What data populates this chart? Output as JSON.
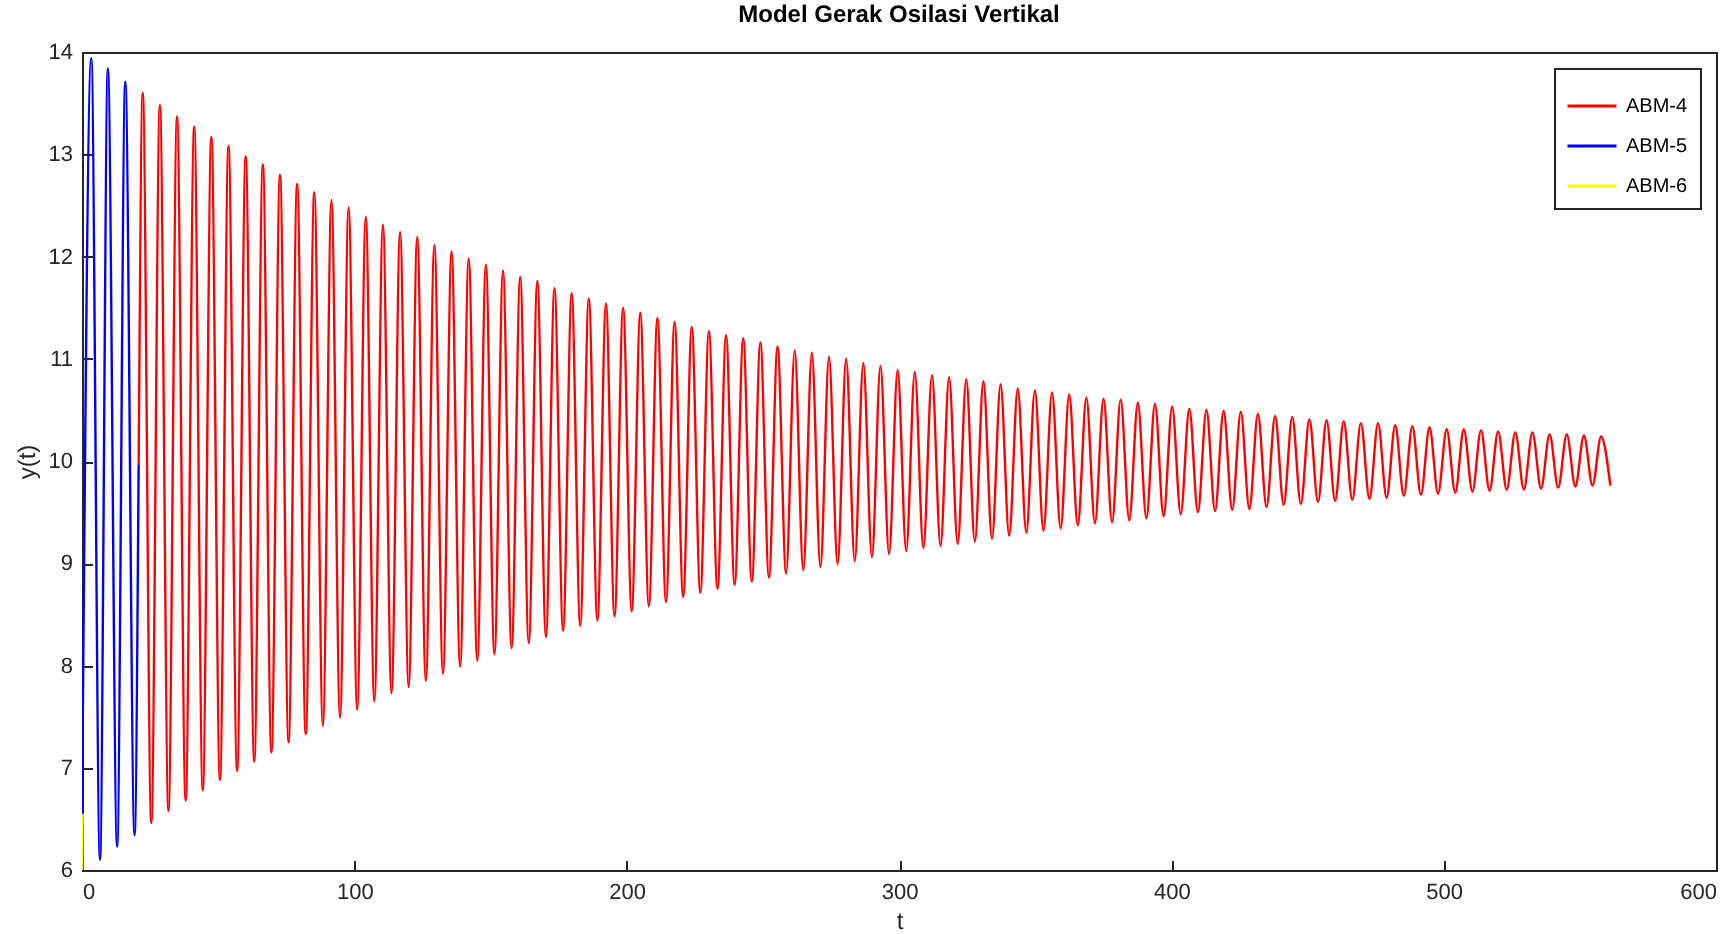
{
  "chart_data": {
    "type": "line",
    "title": "Model Gerak Osilasi Vertikal",
    "xlabel": "t",
    "ylabel": "y(t)",
    "xlim": [
      0,
      600
    ],
    "ylim": [
      6,
      14
    ],
    "xticks": [
      0,
      100,
      200,
      300,
      400,
      500,
      600
    ],
    "yticks": [
      6,
      7,
      8,
      9,
      10,
      11,
      12,
      13,
      14
    ],
    "legend": "top right",
    "series": [
      {
        "name": "ABM-4",
        "color": "#ff0000",
        "x": [
          20.8,
          22.3,
          25.45,
          28.6,
          31.75,
          34.9,
          38.05,
          41.2,
          44.35,
          47.5,
          50.65,
          53.8,
          56.95,
          60.1,
          63.25,
          66.4,
          69.55,
          72.7,
          75.85,
          79,
          82.15,
          85.3,
          88.45,
          91.6,
          94.75,
          97.9,
          101.05,
          104.2,
          107.35,
          110.5,
          113.65,
          116.8,
          119.95,
          123.1,
          126.25,
          129.4,
          132.55,
          135.7,
          138.85,
          142,
          145.15,
          148.3,
          151.45,
          154.6,
          157.75,
          160.9,
          164.05,
          167.2,
          170.35,
          173.5,
          176.65,
          179.8,
          182.95,
          186.1,
          189.25,
          192.4,
          195.55,
          198.7,
          201.85,
          205,
          208.15,
          211.3,
          214.45,
          217.6,
          220.75,
          223.9,
          227.05,
          230.2,
          233.35,
          236.5,
          239.65,
          242.8,
          245.95,
          249.1,
          252.25,
          255.4,
          258.55,
          261.7,
          264.85,
          268,
          271.15,
          274.3,
          277.45,
          280.6,
          283.75,
          286.9,
          290.05,
          293.2,
          296.35,
          299.5,
          302.65,
          305.8,
          308.95,
          312.1,
          315.25,
          318.4,
          321.55,
          324.7,
          327.85,
          331,
          334.15,
          337.3,
          340.45,
          343.6,
          346.75,
          349.9,
          353.05,
          356.2,
          359.35,
          362.5,
          365.65,
          368.8,
          371.95,
          375.1,
          378.25,
          381.4,
          384.55,
          387.7,
          390.85,
          394,
          397.15,
          400.3,
          403.45,
          406.6,
          409.75,
          412.9,
          416.05,
          419.2,
          422.35,
          425.5,
          428.65,
          431.8,
          434.95,
          438.1,
          441.25,
          444.4,
          447.55,
          450.7,
          453.85,
          457,
          460.15,
          463.3,
          466.45,
          469.6,
          472.75,
          475.9,
          479.05,
          482.2,
          485.35,
          488.5,
          491.65,
          494.8,
          497.95,
          501.1,
          504.25,
          507.4,
          510.55,
          513.7,
          516.85,
          520,
          523.15,
          526.3,
          529.45,
          532.6,
          535.75,
          538.9,
          542.05,
          545.2,
          548.35,
          551.5,
          554.65,
          557.8,
          561.2
        ],
        "values": [
          9.96,
          13.6,
          6.46,
          13.48,
          6.58,
          13.37,
          6.68,
          13.27,
          6.78,
          13.17,
          6.88,
          13.08,
          6.97,
          12.98,
          7.06,
          12.9,
          7.15,
          12.8,
          7.25,
          12.71,
          7.33,
          12.63,
          7.41,
          12.55,
          7.49,
          12.48,
          7.57,
          12.39,
          7.65,
          12.31,
          7.73,
          12.24,
          7.79,
          12.19,
          7.85,
          12.11,
          7.92,
          12.05,
          7.99,
          11.98,
          8.05,
          11.92,
          8.11,
          11.86,
          8.17,
          11.8,
          8.22,
          11.76,
          8.28,
          11.69,
          8.34,
          11.64,
          8.39,
          11.59,
          8.44,
          11.54,
          8.48,
          11.5,
          8.53,
          11.45,
          8.58,
          11.4,
          8.62,
          11.36,
          8.67,
          11.31,
          8.71,
          11.27,
          8.75,
          11.23,
          8.79,
          11.2,
          8.82,
          11.16,
          8.86,
          11.12,
          8.9,
          11.08,
          8.93,
          11.06,
          8.96,
          11.02,
          8.99,
          11,
          9.02,
          10.96,
          9.06,
          10.93,
          9.09,
          10.89,
          9.12,
          10.87,
          9.15,
          10.84,
          9.17,
          10.82,
          9.19,
          10.8,
          9.21,
          10.78,
          9.24,
          10.75,
          9.27,
          10.71,
          9.3,
          10.69,
          9.32,
          10.67,
          9.34,
          10.65,
          9.37,
          10.62,
          9.39,
          10.61,
          9.4,
          10.6,
          9.42,
          10.57,
          9.44,
          10.56,
          9.46,
          10.53,
          9.48,
          10.51,
          9.5,
          10.5,
          9.51,
          10.49,
          9.52,
          10.48,
          9.53,
          10.46,
          9.55,
          10.44,
          9.57,
          10.43,
          9.58,
          10.41,
          9.6,
          10.4,
          9.61,
          10.39,
          9.62,
          10.37,
          9.63,
          10.37,
          9.64,
          10.35,
          9.66,
          10.34,
          9.67,
          10.33,
          9.68,
          10.31,
          9.69,
          10.31,
          9.7,
          10.3,
          9.71,
          10.29,
          9.72,
          10.28,
          9.72,
          10.28,
          9.73,
          10.26,
          9.74,
          10.26,
          9.75,
          10.25,
          9.76,
          10.24,
          9.76
        ]
      },
      {
        "name": "ABM-5",
        "color": "#0000ff",
        "x": [
          0,
          3.4,
          6.6,
          9.5,
          12.9,
          15.9,
          19.3,
          20.8
        ],
        "values": [
          6.53,
          13.94,
          6.1,
          13.84,
          6.23,
          13.71,
          6.34,
          9.96
        ]
      },
      {
        "name": "ABM-6",
        "color": "#ffff00",
        "x": [
          0,
          0.2
        ],
        "values": [
          6,
          6.55
        ]
      }
    ]
  }
}
